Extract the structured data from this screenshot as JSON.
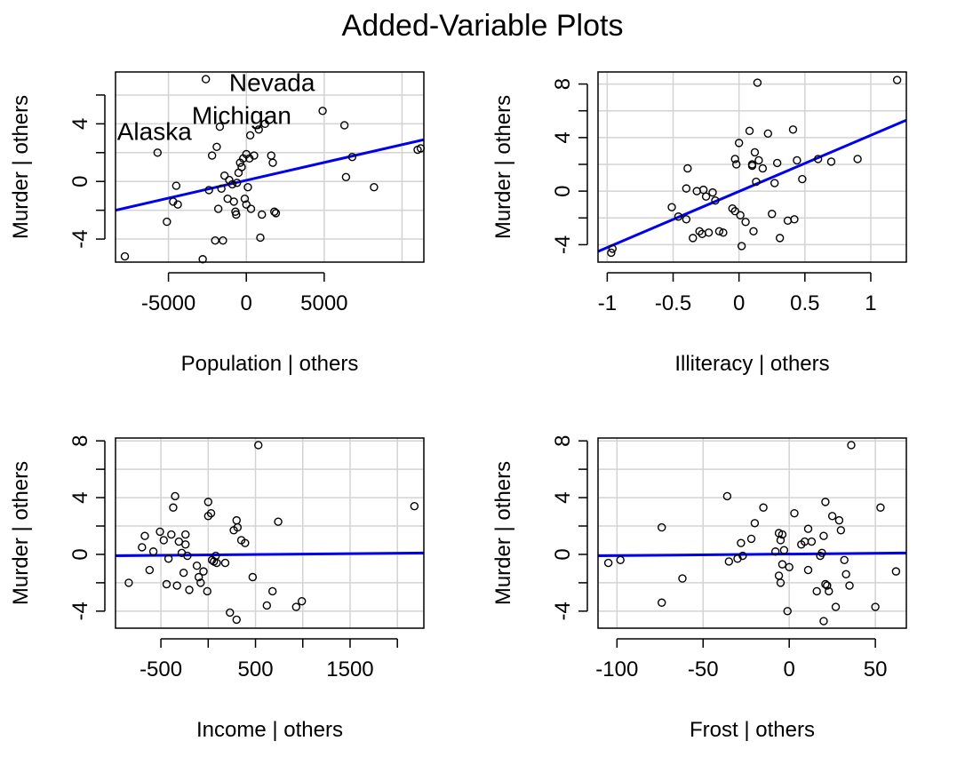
{
  "title": "Added-Variable Plots",
  "colors": {
    "fit_line": "#0000ee",
    "grid": "#d3d3d3",
    "points": "#000000",
    "frame": "#000000"
  },
  "chart_data": [
    {
      "type": "scatter",
      "xlabel": "Population | others",
      "ylabel": "Murder  | others",
      "xlim": [
        -8400,
        11400
      ],
      "ylim": [
        -5.6,
        7.6
      ],
      "xticks": [
        -5000,
        0,
        5000
      ],
      "yticks": [
        -4,
        0,
        4
      ],
      "xgrid": [
        -5000,
        0,
        5000,
        10000
      ],
      "ygrid": [
        -4,
        -2,
        0,
        2,
        4,
        6
      ],
      "xminor": [],
      "yminor": [
        -2,
        2,
        6
      ],
      "grid": true,
      "fit_line": [
        [
          -8400,
          -2.0
        ],
        [
          11400,
          2.9
        ]
      ],
      "annotations": [
        {
          "text": "Nevada",
          "x": -1100,
          "y": 6.9
        },
        {
          "text": "Michigan",
          "x": -3500,
          "y": 4.6
        },
        {
          "text": "Alaska",
          "x": -8300,
          "y": 3.5
        }
      ],
      "points": [
        [
          -7800,
          -5.2
        ],
        [
          -5700,
          2.0
        ],
        [
          -5100,
          -2.8
        ],
        [
          -4700,
          -1.4
        ],
        [
          -4400,
          -1.6
        ],
        [
          -4500,
          -0.3
        ],
        [
          -2800,
          -5.4
        ],
        [
          -2600,
          7.1
        ],
        [
          -2400,
          -0.6
        ],
        [
          -2200,
          1.8
        ],
        [
          -2000,
          -4.1
        ],
        [
          -1900,
          2.4
        ],
        [
          -1800,
          -1.9
        ],
        [
          -1700,
          3.8
        ],
        [
          -1600,
          -0.5
        ],
        [
          -1500,
          -4.1
        ],
        [
          -1400,
          0.4
        ],
        [
          -1200,
          -1.2
        ],
        [
          -1100,
          0.1
        ],
        [
          -900,
          -0.2
        ],
        [
          -800,
          -1.4
        ],
        [
          -700,
          -2.1
        ],
        [
          -650,
          -2.3
        ],
        [
          -600,
          -0.1
        ],
        [
          -500,
          0.6
        ],
        [
          -400,
          1.3
        ],
        [
          -300,
          1.0
        ],
        [
          -200,
          1.6
        ],
        [
          -100,
          -1.2
        ],
        [
          0,
          -1.6
        ],
        [
          0,
          1.9
        ],
        [
          100,
          -0.4
        ],
        [
          200,
          1.6
        ],
        [
          250,
          3.2
        ],
        [
          300,
          -1.9
        ],
        [
          500,
          1.8
        ],
        [
          800,
          3.6
        ],
        [
          900,
          -3.9
        ],
        [
          1000,
          -2.3
        ],
        [
          1200,
          4.0
        ],
        [
          1600,
          1.8
        ],
        [
          1700,
          1.3
        ],
        [
          1800,
          -2.1
        ],
        [
          1900,
          -2.2
        ],
        [
          4900,
          4.9
        ],
        [
          6300,
          3.9
        ],
        [
          6400,
          0.3
        ],
        [
          6800,
          1.7
        ],
        [
          8200,
          -0.4
        ],
        [
          11000,
          2.2
        ],
        [
          11200,
          2.3
        ]
      ]
    },
    {
      "type": "scatter",
      "xlabel": "Illiteracy | others",
      "ylabel": "Murder  | others",
      "xlim": [
        -1.07,
        1.27
      ],
      "ylim": [
        -5.3,
        8.9
      ],
      "xticks": [
        -1.0,
        -0.5,
        0.0,
        0.5,
        1.0
      ],
      "yticks": [
        -4,
        0,
        4,
        8
      ],
      "xgrid": [
        -1.0,
        -0.5,
        0.0,
        0.5,
        1.0
      ],
      "ygrid": [
        -4,
        -2,
        0,
        2,
        4,
        6,
        8
      ],
      "xminor": [],
      "yminor": [
        -2,
        2,
        6
      ],
      "grid": true,
      "fit_line": [
        [
          -1.07,
          -4.5
        ],
        [
          1.27,
          5.3
        ]
      ],
      "annotations": [],
      "points": [
        [
          -0.97,
          -4.6
        ],
        [
          -0.96,
          -4.3
        ],
        [
          -0.51,
          -1.2
        ],
        [
          -0.46,
          -1.9
        ],
        [
          -0.4,
          -2.1
        ],
        [
          -0.4,
          0.2
        ],
        [
          -0.39,
          1.7
        ],
        [
          -0.35,
          -3.5
        ],
        [
          -0.32,
          0.0
        ],
        [
          -0.3,
          -3.0
        ],
        [
          -0.28,
          -3.2
        ],
        [
          -0.27,
          0.1
        ],
        [
          -0.25,
          -0.4
        ],
        [
          -0.23,
          -3.1
        ],
        [
          -0.2,
          -0.1
        ],
        [
          -0.18,
          -0.7
        ],
        [
          -0.15,
          -3.0
        ],
        [
          -0.12,
          -3.1
        ],
        [
          -0.05,
          -1.3
        ],
        [
          -0.03,
          -1.5
        ],
        [
          -0.02,
          2.0
        ],
        [
          -0.03,
          2.4
        ],
        [
          0.0,
          3.6
        ],
        [
          0.01,
          -1.8
        ],
        [
          0.02,
          -4.1
        ],
        [
          0.05,
          -2.3
        ],
        [
          0.08,
          4.5
        ],
        [
          0.1,
          2.0
        ],
        [
          0.1,
          1.9
        ],
        [
          0.11,
          -3.0
        ],
        [
          0.12,
          2.9
        ],
        [
          0.13,
          0.7
        ],
        [
          0.14,
          8.1
        ],
        [
          0.15,
          2.3
        ],
        [
          0.18,
          1.7
        ],
        [
          0.22,
          4.3
        ],
        [
          0.25,
          -1.7
        ],
        [
          0.27,
          0.6
        ],
        [
          0.29,
          2.1
        ],
        [
          0.31,
          -3.5
        ],
        [
          0.37,
          -2.2
        ],
        [
          0.41,
          4.6
        ],
        [
          0.42,
          -2.1
        ],
        [
          0.44,
          2.3
        ],
        [
          0.48,
          0.9
        ],
        [
          0.6,
          2.4
        ],
        [
          0.7,
          2.2
        ],
        [
          0.9,
          2.4
        ],
        [
          1.2,
          8.3
        ]
      ]
    },
    {
      "type": "scatter",
      "xlabel": "Income | others",
      "ylabel": "Murder  | others",
      "xlim": [
        -980,
        2280
      ],
      "ylim": [
        -5.2,
        8.2
      ],
      "xticks": [
        -500,
        500,
        1500
      ],
      "yticks": [
        -4,
        0,
        4,
        8
      ],
      "xgrid": [
        -500,
        0,
        500,
        1000,
        1500,
        2000
      ],
      "ygrid": [
        -4,
        -2,
        0,
        2,
        4,
        6,
        8
      ],
      "xminor": [
        0,
        1000,
        2000
      ],
      "yminor": [
        -2,
        2,
        6
      ],
      "grid": true,
      "fit_line": [
        [
          -980,
          -0.1
        ],
        [
          2280,
          0.1
        ]
      ],
      "annotations": [],
      "points": [
        [
          -840,
          -2.0
        ],
        [
          -700,
          0.5
        ],
        [
          -670,
          1.3
        ],
        [
          -620,
          -1.1
        ],
        [
          -580,
          0.2
        ],
        [
          -510,
          1.6
        ],
        [
          -470,
          1.0
        ],
        [
          -440,
          -2.1
        ],
        [
          -420,
          -0.3
        ],
        [
          -390,
          1.4
        ],
        [
          -370,
          3.3
        ],
        [
          -350,
          4.1
        ],
        [
          -330,
          -2.2
        ],
        [
          -310,
          0.9
        ],
        [
          -280,
          0.1
        ],
        [
          -260,
          -1.3
        ],
        [
          -240,
          0.7
        ],
        [
          -240,
          1.4
        ],
        [
          -220,
          -0.1
        ],
        [
          -200,
          -2.5
        ],
        [
          -120,
          -0.8
        ],
        [
          -100,
          -1.6
        ],
        [
          -80,
          -2.0
        ],
        [
          -50,
          -1.2
        ],
        [
          -10,
          -2.6
        ],
        [
          0,
          3.7
        ],
        [
          0,
          2.7
        ],
        [
          30,
          2.9
        ],
        [
          40,
          -0.4
        ],
        [
          60,
          -0.5
        ],
        [
          80,
          -0.1
        ],
        [
          90,
          -0.6
        ],
        [
          180,
          -0.6
        ],
        [
          230,
          -4.1
        ],
        [
          270,
          1.7
        ],
        [
          300,
          2.4
        ],
        [
          300,
          -4.6
        ],
        [
          310,
          1.9
        ],
        [
          350,
          1.0
        ],
        [
          390,
          0.8
        ],
        [
          470,
          -1.6
        ],
        [
          530,
          7.7
        ],
        [
          620,
          -3.6
        ],
        [
          680,
          -2.6
        ],
        [
          740,
          2.3
        ],
        [
          930,
          -3.7
        ],
        [
          990,
          -3.3
        ],
        [
          2180,
          3.4
        ]
      ]
    },
    {
      "type": "scatter",
      "xlabel": "Frost | others",
      "ylabel": "Murder  | others",
      "xlim": [
        -111,
        68
      ],
      "ylim": [
        -5.2,
        8.2
      ],
      "xticks": [
        -100,
        -50,
        0,
        50
      ],
      "yticks": [
        -4,
        0,
        4,
        8
      ],
      "xgrid": [
        -100,
        -50,
        0,
        50
      ],
      "ygrid": [
        -4,
        -2,
        0,
        2,
        4,
        6,
        8
      ],
      "xminor": [],
      "yminor": [
        -2,
        2,
        6
      ],
      "grid": true,
      "fit_line": [
        [
          -111,
          -0.1
        ],
        [
          68,
          0.1
        ]
      ],
      "annotations": [],
      "points": [
        [
          -105,
          -0.6
        ],
        [
          -98,
          -0.4
        ],
        [
          -74,
          1.9
        ],
        [
          -74,
          -3.4
        ],
        [
          -62,
          -1.7
        ],
        [
          -36,
          4.1
        ],
        [
          -35,
          -0.5
        ],
        [
          -30,
          -0.3
        ],
        [
          -28,
          0.8
        ],
        [
          -27,
          -0.1
        ],
        [
          -22,
          1.1
        ],
        [
          -20,
          2.2
        ],
        [
          -15,
          3.3
        ],
        [
          -8,
          0.2
        ],
        [
          -6,
          1.5
        ],
        [
          -6,
          -1.5
        ],
        [
          -5,
          -2.0
        ],
        [
          -5,
          1.0
        ],
        [
          -4,
          1.4
        ],
        [
          -4,
          -0.7
        ],
        [
          -3,
          0.3
        ],
        [
          -1,
          -4.0
        ],
        [
          0,
          -0.9
        ],
        [
          3,
          2.9
        ],
        [
          7,
          0.7
        ],
        [
          9,
          0.9
        ],
        [
          11,
          -1.1
        ],
        [
          11,
          1.8
        ],
        [
          13,
          0.9
        ],
        [
          16,
          -2.6
        ],
        [
          18,
          -0.1
        ],
        [
          19,
          0.1
        ],
        [
          20,
          1.3
        ],
        [
          20,
          -4.7
        ],
        [
          21,
          -2.1
        ],
        [
          21,
          3.7
        ],
        [
          22,
          -2.2
        ],
        [
          23,
          -2.6
        ],
        [
          25,
          2.7
        ],
        [
          27,
          -3.7
        ],
        [
          29,
          2.4
        ],
        [
          30,
          1.7
        ],
        [
          32,
          -0.4
        ],
        [
          33,
          -1.4
        ],
        [
          35,
          -2.2
        ],
        [
          36,
          7.7
        ],
        [
          50,
          -3.7
        ],
        [
          53,
          3.3
        ],
        [
          62,
          -1.2
        ]
      ]
    }
  ]
}
